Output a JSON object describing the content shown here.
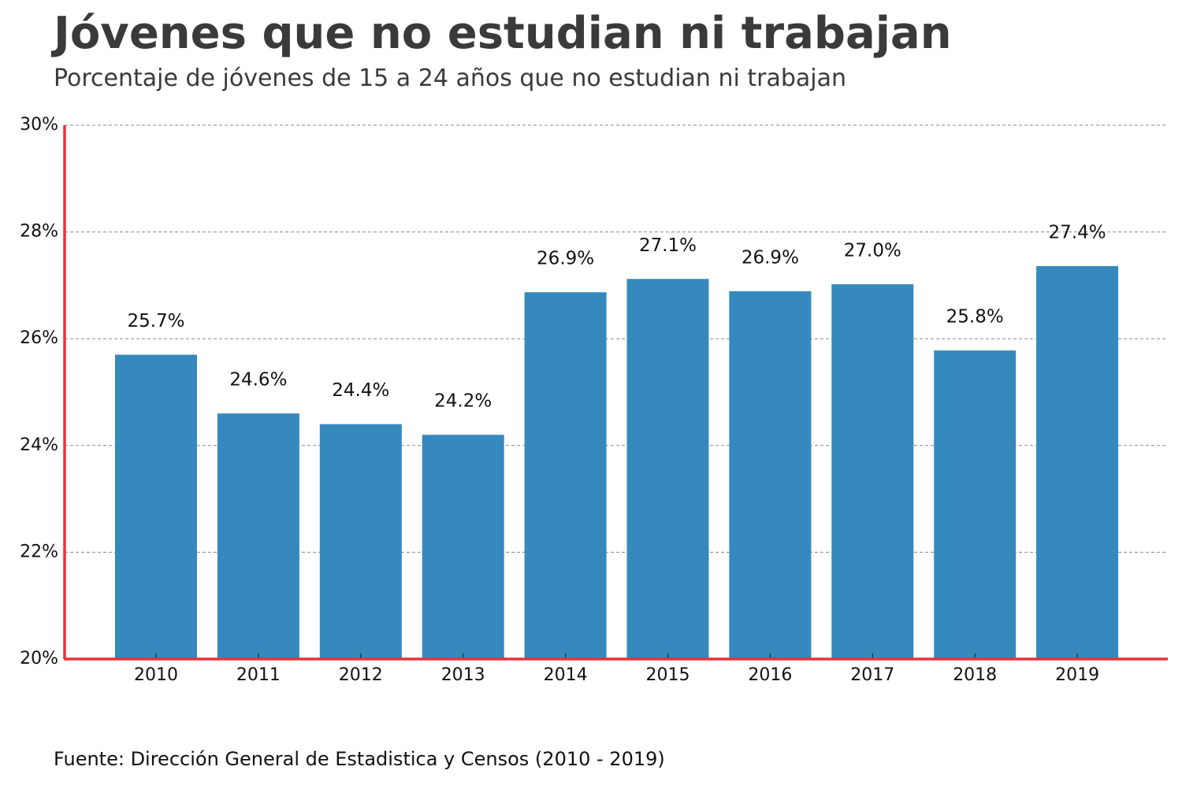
{
  "header": {
    "title": "Jóvenes que no estudian ni trabajan",
    "subtitle": "Porcentaje de jóvenes de 15 a 24 años que no estudian ni trabajan"
  },
  "footer": {
    "source": "Fuente: Dirección General de Estadistica y Censos (2010 - 2019)"
  },
  "chart_data": {
    "type": "bar",
    "title": "Jóvenes que no estudian ni trabajan",
    "subtitle": "Porcentaje de jóvenes de 15 a 24 años que no estudian ni trabajan",
    "xlabel": "",
    "ylabel": "",
    "categories": [
      "2010",
      "2011",
      "2012",
      "2013",
      "2014",
      "2015",
      "2016",
      "2017",
      "2018",
      "2019"
    ],
    "values": [
      25.7,
      24.6,
      24.4,
      24.2,
      26.87,
      27.12,
      26.89,
      27.02,
      25.78,
      27.36
    ],
    "data_labels": [
      "25.7%",
      "24.6%",
      "24.4%",
      "24.2%",
      "26.9%",
      "27.1%",
      "26.9%",
      "27.0%",
      "25.8%",
      "27.4%"
    ],
    "ylim": [
      20,
      30
    ],
    "yticks": [
      20,
      22,
      24,
      26,
      28,
      30
    ],
    "ytick_labels": [
      "20%",
      "22%",
      "24%",
      "26%",
      "28%",
      "30%"
    ],
    "grid": "horizontal dashed",
    "legend": "none",
    "colors": {
      "bar": "#3589bd",
      "axis": "#e8323a",
      "grid": "#888888",
      "title": "#3a3a3a",
      "text": "#111111"
    }
  }
}
